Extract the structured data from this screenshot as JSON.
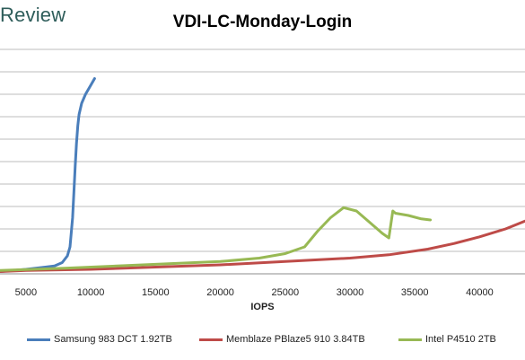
{
  "brand": {
    "text": "Review"
  },
  "chart_data": {
    "type": "line",
    "title": "VDI-LC-Monday-Login",
    "xlabel": "IOPS",
    "ylabel": "",
    "x_ticks": [
      "5000",
      "10000",
      "15000",
      "20000",
      "25000",
      "30000",
      "35000",
      "40000"
    ],
    "xlim": [
      3000,
      43500
    ],
    "ylim": [
      0,
      10
    ],
    "grid": {
      "horizontal": true,
      "vertical": false
    },
    "legend_position": "bottom",
    "series": [
      {
        "name": "Samsung 983 DCT 1.92TB",
        "color": "#4a7ebb",
        "x": [
          3000,
          5000,
          6500,
          7200,
          7800,
          8200,
          8400,
          8600,
          8700,
          8800,
          8900,
          9000,
          9100,
          9300,
          9600,
          10000,
          10300
        ],
        "y": [
          0.1,
          0.2,
          0.3,
          0.35,
          0.5,
          0.8,
          1.2,
          2.5,
          3.6,
          4.8,
          5.8,
          6.6,
          7.1,
          7.6,
          8.0,
          8.4,
          8.7
        ]
      },
      {
        "name": "Memblaze PBlaze5 910 3.84TB",
        "color": "#be4b48",
        "x": [
          3000,
          5000,
          10000,
          15000,
          20000,
          25000,
          30000,
          33000,
          36000,
          38000,
          40000,
          42000,
          43500
        ],
        "y": [
          0.1,
          0.15,
          0.2,
          0.3,
          0.4,
          0.55,
          0.7,
          0.85,
          1.1,
          1.35,
          1.65,
          2.0,
          2.35
        ]
      },
      {
        "name": "Intel P4510 2TB",
        "color": "#98b954",
        "x": [
          3000,
          8000,
          12000,
          16000,
          20000,
          23000,
          25000,
          26500,
          27500,
          28500,
          29500,
          30500,
          31500,
          32500,
          33000,
          33300,
          33500,
          34500,
          35500,
          36200
        ],
        "y": [
          0.15,
          0.25,
          0.35,
          0.45,
          0.55,
          0.7,
          0.9,
          1.2,
          1.9,
          2.5,
          2.95,
          2.8,
          2.3,
          1.8,
          1.6,
          2.8,
          2.7,
          2.6,
          2.45,
          2.4
        ]
      }
    ]
  }
}
